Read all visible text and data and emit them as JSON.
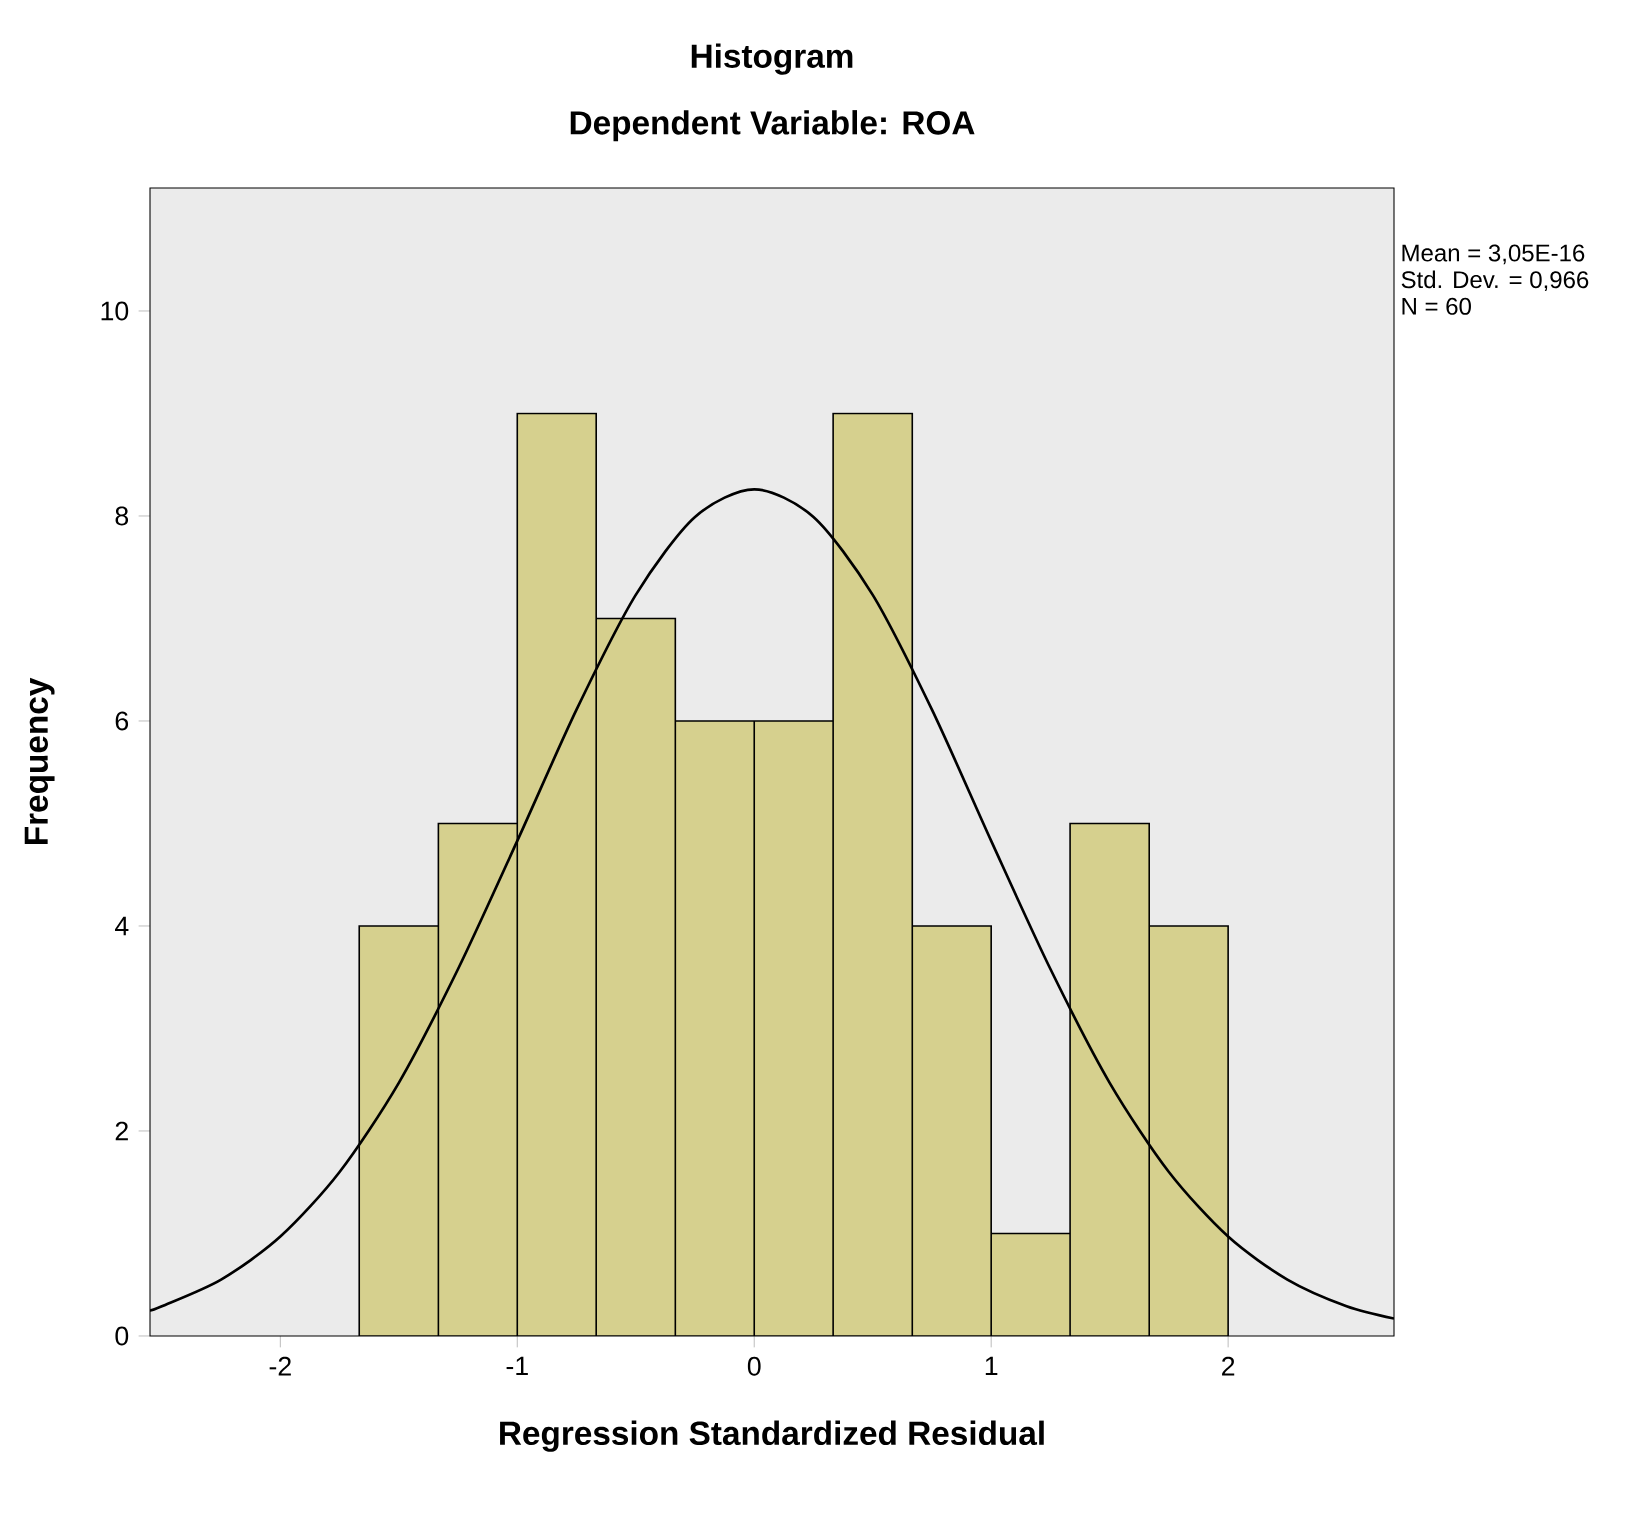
{
  "chart_data": {
    "type": "histogram",
    "title": "Histogram",
    "subtitle": "Dependent Variable: ROA",
    "xlabel": "Regression Standardized Residual",
    "ylabel": "Frequency",
    "bins": [
      -1.667,
      -1.333,
      -1,
      -0.667,
      -0.333,
      0,
      0.333,
      0.667,
      1,
      1.333,
      1.667,
      2
    ],
    "values": [
      4,
      5,
      9,
      7,
      6,
      6,
      9,
      4,
      1,
      5,
      4
    ],
    "color": "#d6d08e",
    "series": [
      {
        "type": "line",
        "color": "#000000",
        "x": [
          -2.55,
          -2.5,
          -2.25,
          -2,
          -1.75,
          -1.5,
          -1.25,
          -1,
          -0.75,
          -0.5,
          -0.25,
          0,
          0.25,
          0.5,
          0.75,
          1,
          1.25,
          1.5,
          1.75,
          2,
          2.25,
          2.5,
          2.7
        ],
        "values": [
          0.25,
          0.29,
          0.55,
          0.97,
          1.6,
          2.47,
          3.58,
          4.83,
          6.11,
          7.23,
          7.99,
          8.26,
          7.99,
          7.23,
          6.11,
          4.83,
          3.58,
          2.47,
          1.6,
          0.97,
          0.55,
          0.29,
          0.17
        ]
      }
    ],
    "xlim": [
      -2.55,
      2.7
    ],
    "ylim": [
      0,
      11.2
    ],
    "xticks": [
      -2,
      -1,
      0,
      1,
      2
    ],
    "yticks": [
      0,
      2,
      4,
      6,
      8,
      10
    ],
    "annotations": [
      "Mean = 3,05E-16",
      "Std. Dev. = 0,966",
      "N = 60"
    ]
  }
}
